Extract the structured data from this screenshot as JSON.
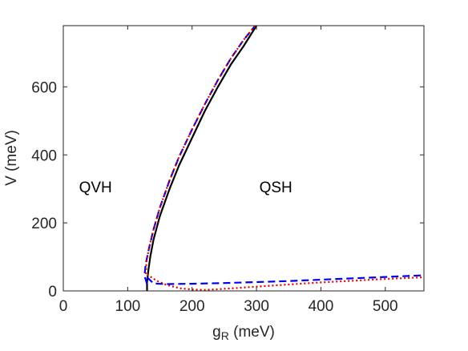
{
  "chart_data": {
    "type": "line",
    "title": "",
    "xlabel": "g",
    "xlabel_sub": "R",
    "xlabel_unit": " (meV)",
    "ylabel": "V (meV)",
    "xlim": [
      0,
      560
    ],
    "ylim": [
      0,
      780
    ],
    "xticks": [
      0,
      100,
      200,
      300,
      400,
      500
    ],
    "yticks": [
      0,
      200,
      400,
      600
    ],
    "grid": false,
    "legend": "none",
    "annotations": [
      {
        "text": "QVH",
        "x": 50,
        "y": 290
      },
      {
        "text": "QSH",
        "x": 330,
        "y": 290
      }
    ],
    "series": [
      {
        "color": "#000000",
        "style": "solid",
        "x": [
          130,
          130,
          132,
          135,
          140,
          150,
          165,
          180,
          200,
          220,
          240,
          260,
          280,
          300
        ],
        "y": [
          0,
          25,
          60,
          100,
          150,
          220,
          300,
          370,
          450,
          530,
          600,
          665,
          720,
          780
        ]
      },
      {
        "color": "#0000ee",
        "style": "dashed",
        "x": [
          130,
          126,
          128,
          133,
          140,
          150,
          165,
          180,
          200,
          220,
          240,
          260,
          280,
          298
        ],
        "y": [
          20,
          45,
          80,
          125,
          180,
          245,
          325,
          395,
          475,
          550,
          620,
          683,
          738,
          780
        ]
      },
      {
        "color": "#0000ee",
        "style": "dashed",
        "x": [
          130,
          140,
          160,
          200,
          250,
          300,
          350,
          400,
          450,
          500,
          560
        ],
        "y": [
          40,
          22,
          20,
          21,
          23,
          26,
          29,
          33,
          37,
          41,
          46
        ]
      },
      {
        "color": "#e00000",
        "style": "dotted",
        "x": [
          128,
          129,
          133,
          140,
          150,
          165,
          180,
          200,
          220,
          240,
          260,
          280,
          298
        ],
        "y": [
          50,
          85,
          125,
          180,
          245,
          325,
          395,
          475,
          550,
          620,
          683,
          738,
          780
        ]
      },
      {
        "color": "#e00000",
        "style": "dotted",
        "x": [
          130,
          145,
          160,
          180,
          200,
          220,
          240,
          280,
          320,
          360,
          400,
          450,
          500,
          560
        ],
        "y": [
          48,
          30,
          18,
          8,
          4,
          3,
          5,
          10,
          15,
          20,
          25,
          30,
          35,
          40
        ]
      }
    ]
  }
}
